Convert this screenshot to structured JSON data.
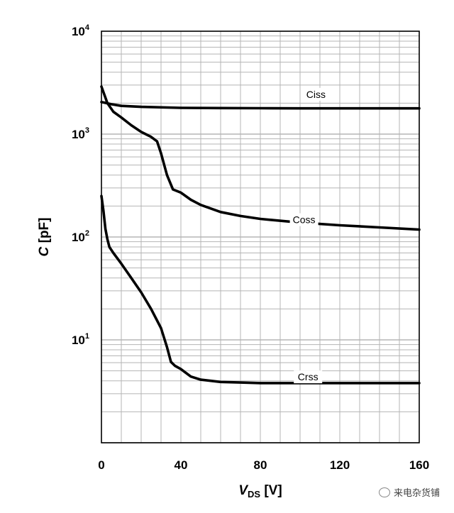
{
  "chart_data": {
    "type": "line",
    "xlabel": "V",
    "xlabel_sub": "DS",
    "xlabel_unit": "[V]",
    "ylabel": "C",
    "ylabel_unit": "[pF]",
    "xlim": [
      0,
      160
    ],
    "x_ticks": [
      0,
      40,
      80,
      120,
      160
    ],
    "y_scale": "log",
    "ylim": [
      1,
      10000
    ],
    "y_ticks": [
      {
        "base": "10",
        "exp": "1",
        "value": 10
      },
      {
        "base": "10",
        "exp": "2",
        "value": 100
      },
      {
        "base": "10",
        "exp": "3",
        "value": 1000
      },
      {
        "base": "10",
        "exp": "4",
        "value": 10000
      }
    ],
    "grid": true,
    "series": [
      {
        "name": "Ciss",
        "x": [
          0,
          5,
          10,
          20,
          40,
          60,
          80,
          100,
          120,
          140,
          160
        ],
        "y": [
          2050,
          1950,
          1880,
          1840,
          1800,
          1790,
          1785,
          1780,
          1780,
          1780,
          1780
        ]
      },
      {
        "name": "Coss",
        "x": [
          0,
          3,
          6,
          10,
          15,
          20,
          25,
          28,
          30,
          33,
          36,
          40,
          45,
          50,
          60,
          70,
          80,
          100,
          120,
          140,
          160
        ],
        "y": [
          2900,
          2000,
          1650,
          1450,
          1220,
          1050,
          940,
          850,
          650,
          400,
          290,
          270,
          230,
          205,
          175,
          160,
          150,
          138,
          130,
          124,
          118
        ]
      },
      {
        "name": "Crss",
        "x": [
          0,
          1,
          2,
          3,
          4,
          6,
          10,
          15,
          20,
          25,
          30,
          33,
          35,
          37,
          40,
          45,
          50,
          60,
          70,
          80,
          100,
          120,
          140,
          160
        ],
        "y": [
          250,
          180,
          120,
          95,
          80,
          70,
          55,
          40,
          29,
          20,
          13,
          8.5,
          6.1,
          5.6,
          5.2,
          4.4,
          4.1,
          3.9,
          3.85,
          3.8,
          3.8,
          3.8,
          3.8,
          3.8
        ]
      }
    ],
    "series_labels": [
      {
        "name": "Ciss",
        "x": 108,
        "y": 2400
      },
      {
        "name": "Coss",
        "x": 102,
        "y": 145
      },
      {
        "name": "Crss",
        "x": 104,
        "y": 4.3
      }
    ],
    "line_color": "#000000",
    "grid_color": "#b5b5b5"
  },
  "watermark": "来电杂货铺"
}
